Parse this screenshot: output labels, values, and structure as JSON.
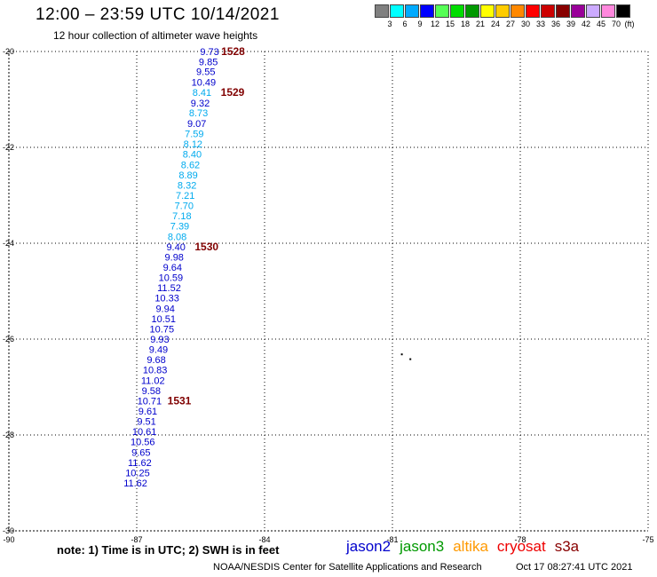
{
  "header": {
    "title": "12:00 – 23:59 UTC 10/14/2021",
    "subtitle": "12 hour collection of altimeter wave heights"
  },
  "legend": {
    "unit": "(ft)",
    "bins": [
      {
        "label": "3",
        "color": "#808080"
      },
      {
        "label": "6",
        "color": "#00ffff"
      },
      {
        "label": "9",
        "color": "#00aaff"
      },
      {
        "label": "12",
        "color": "#0000ff"
      },
      {
        "label": "15",
        "color": "#55ff55"
      },
      {
        "label": "18",
        "color": "#00dd00"
      },
      {
        "label": "21",
        "color": "#009900"
      },
      {
        "label": "24",
        "color": "#ffff00"
      },
      {
        "label": "27",
        "color": "#ffcc00"
      },
      {
        "label": "30",
        "color": "#ff8800"
      },
      {
        "label": "33",
        "color": "#ff0000"
      },
      {
        "label": "36",
        "color": "#cc0000"
      },
      {
        "label": "39",
        "color": "#880000"
      },
      {
        "label": "42",
        "color": "#990099"
      },
      {
        "label": "45",
        "color": "#ccaaff"
      },
      {
        "label": "70",
        "color": "#ff88dd"
      },
      {
        "label": "",
        "color": "#000000"
      }
    ]
  },
  "map": {
    "lon_range": [
      -90,
      -75
    ],
    "lat_range": [
      -30,
      -20
    ],
    "x_ticks": [
      {
        "value": -90,
        "label": "-90"
      },
      {
        "value": -87,
        "label": "-87"
      },
      {
        "value": -84,
        "label": "-84"
      },
      {
        "value": -81,
        "label": "-81"
      },
      {
        "value": -78,
        "label": "-78"
      },
      {
        "value": -75,
        "label": "-75"
      }
    ],
    "y_ticks": [
      {
        "value": -20,
        "label": "-20"
      },
      {
        "value": -22,
        "label": "-22"
      },
      {
        "value": -24,
        "label": "-24"
      },
      {
        "value": -26,
        "label": "-26"
      },
      {
        "value": -28,
        "label": "-28"
      },
      {
        "value": -30,
        "label": "-30"
      }
    ],
    "grid": true,
    "land_dots": [
      {
        "lon": -80.8,
        "lat": -26.3
      },
      {
        "lon": -80.6,
        "lat": -26.4
      }
    ],
    "observations": [
      {
        "lon": -85.29,
        "lat": -20.0,
        "swh": "9.73",
        "color": "#0000cc"
      },
      {
        "lon": -85.32,
        "lat": -20.21,
        "swh": "9.85",
        "color": "#0000cc"
      },
      {
        "lon": -85.38,
        "lat": -20.42,
        "swh": "9.55",
        "color": "#0000cc"
      },
      {
        "lon": -85.43,
        "lat": -20.64,
        "swh": "10.49",
        "color": "#0000cc"
      },
      {
        "lon": -85.47,
        "lat": -20.85,
        "swh": "8.41",
        "color": "#00aaee"
      },
      {
        "lon": -85.51,
        "lat": -21.07,
        "swh": "9.32",
        "color": "#0000cc"
      },
      {
        "lon": -85.55,
        "lat": -21.28,
        "swh": "8.73",
        "color": "#00aaee"
      },
      {
        "lon": -85.59,
        "lat": -21.5,
        "swh": "9.07",
        "color": "#0000cc"
      },
      {
        "lon": -85.65,
        "lat": -21.71,
        "swh": "7.59",
        "color": "#00aaee"
      },
      {
        "lon": -85.68,
        "lat": -21.93,
        "swh": "8.12",
        "color": "#00aaee"
      },
      {
        "lon": -85.7,
        "lat": -22.14,
        "swh": "8.40",
        "color": "#00aaee"
      },
      {
        "lon": -85.74,
        "lat": -22.36,
        "swh": "8.62",
        "color": "#00aaee"
      },
      {
        "lon": -85.79,
        "lat": -22.57,
        "swh": "8.89",
        "color": "#00aaee"
      },
      {
        "lon": -85.82,
        "lat": -22.79,
        "swh": "8.32",
        "color": "#00aaee"
      },
      {
        "lon": -85.86,
        "lat": -23.0,
        "swh": "7.21",
        "color": "#00aaee"
      },
      {
        "lon": -85.89,
        "lat": -23.21,
        "swh": "7.70",
        "color": "#00aaee"
      },
      {
        "lon": -85.94,
        "lat": -23.43,
        "swh": "7.18",
        "color": "#00aaee"
      },
      {
        "lon": -85.99,
        "lat": -23.64,
        "swh": "7.39",
        "color": "#00aaee"
      },
      {
        "lon": -86.05,
        "lat": -23.86,
        "swh": "8.08",
        "color": "#00aaee"
      },
      {
        "lon": -86.08,
        "lat": -24.07,
        "swh": "9.40",
        "color": "#0000cc"
      },
      {
        "lon": -86.12,
        "lat": -24.29,
        "swh": "9.98",
        "color": "#0000cc"
      },
      {
        "lon": -86.16,
        "lat": -24.5,
        "swh": "9.64",
        "color": "#0000cc"
      },
      {
        "lon": -86.2,
        "lat": -24.71,
        "swh": "10.59",
        "color": "#0000cc"
      },
      {
        "lon": -86.24,
        "lat": -24.93,
        "swh": "11.52",
        "color": "#0000cc"
      },
      {
        "lon": -86.29,
        "lat": -25.14,
        "swh": "10.33",
        "color": "#0000cc"
      },
      {
        "lon": -86.33,
        "lat": -25.36,
        "swh": "9.94",
        "color": "#0000cc"
      },
      {
        "lon": -86.37,
        "lat": -25.57,
        "swh": "10.51",
        "color": "#0000cc"
      },
      {
        "lon": -86.41,
        "lat": -25.79,
        "swh": "10.75",
        "color": "#0000cc"
      },
      {
        "lon": -86.46,
        "lat": -26.0,
        "swh": "9.93",
        "color": "#0000cc"
      },
      {
        "lon": -86.49,
        "lat": -26.21,
        "swh": "9.49",
        "color": "#0000cc"
      },
      {
        "lon": -86.54,
        "lat": -26.43,
        "swh": "9.68",
        "color": "#0000cc"
      },
      {
        "lon": -86.57,
        "lat": -26.64,
        "swh": "10.83",
        "color": "#0000cc"
      },
      {
        "lon": -86.62,
        "lat": -26.86,
        "swh": "11.02",
        "color": "#0000cc"
      },
      {
        "lon": -86.66,
        "lat": -27.07,
        "swh": "9.58",
        "color": "#0000cc"
      },
      {
        "lon": -86.7,
        "lat": -27.29,
        "swh": "10.71",
        "color": "#0000cc"
      },
      {
        "lon": -86.74,
        "lat": -27.5,
        "swh": "9.61",
        "color": "#0000cc"
      },
      {
        "lon": -86.77,
        "lat": -27.71,
        "swh": "9.51",
        "color": "#0000cc"
      },
      {
        "lon": -86.82,
        "lat": -27.93,
        "swh": "10.61",
        "color": "#0000cc"
      },
      {
        "lon": -86.86,
        "lat": -28.14,
        "swh": "10.56",
        "color": "#0000cc"
      },
      {
        "lon": -86.9,
        "lat": -28.36,
        "swh": "9.65",
        "color": "#0000cc"
      },
      {
        "lon": -86.93,
        "lat": -28.57,
        "swh": "11.62",
        "color": "#0000cc"
      },
      {
        "lon": -86.98,
        "lat": -28.79,
        "swh": "10.25",
        "color": "#0000cc"
      },
      {
        "lon": -87.03,
        "lat": -29.0,
        "swh": "11.62",
        "color": "#0000cc"
      }
    ],
    "orbit_labels": [
      {
        "lon": -84.74,
        "lat": -20.0,
        "text": "1528",
        "color": "#800000"
      },
      {
        "lon": -84.75,
        "lat": -20.85,
        "text": "1529",
        "color": "#800000"
      },
      {
        "lon": -85.36,
        "lat": -24.07,
        "text": "1530",
        "color": "#800000"
      },
      {
        "lon": -86.0,
        "lat": -27.29,
        "text": "1531",
        "color": "#800000"
      }
    ]
  },
  "footer": {
    "note": "note:  1) Time is in UTC;  2) SWH is in feet",
    "satellites": [
      {
        "name": "jason2",
        "color": "#0000cc"
      },
      {
        "name": "jason3",
        "color": "#009900"
      },
      {
        "name": "altika",
        "color": "#ff9900"
      },
      {
        "name": "cryosat",
        "color": "#ee0000"
      },
      {
        "name": "s3a",
        "color": "#880000"
      }
    ],
    "credit": "NOAA/NESDIS Center for Satellite Applications and Research",
    "timestamp": "Oct 17 08:27:41 UTC 2021"
  }
}
